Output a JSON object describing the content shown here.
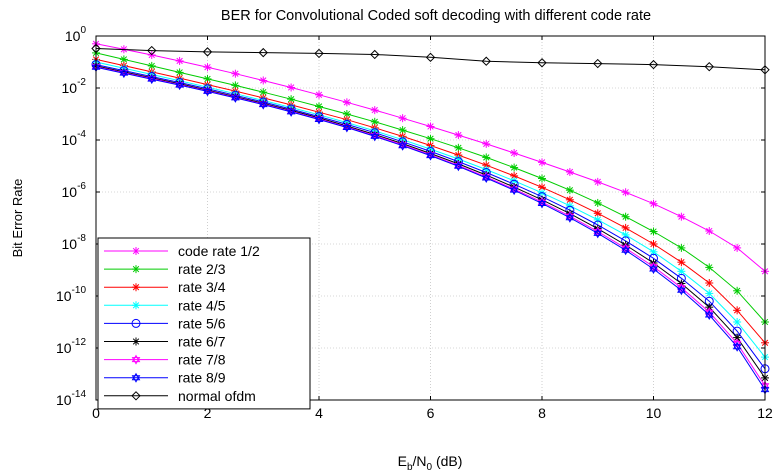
{
  "chart_data": {
    "type": "line",
    "title": "BER for Convolutional Coded soft decoding with different code rate",
    "xlabel_base": "E",
    "xlabel_sub1": "b",
    "xlabel_mid": "/N",
    "xlabel_sub2": "0",
    "xlabel_unit": " (dB)",
    "ylabel": "Bit Error Rate",
    "y_scale": "log",
    "xlim": [
      0,
      12
    ],
    "ylim": [
      1e-14,
      1
    ],
    "x_ticks": [
      "0",
      "2",
      "4",
      "6",
      "8",
      "10",
      "12"
    ],
    "y_ticks": [
      {
        "base": "10",
        "exp": "0"
      },
      {
        "base": "10",
        "exp": "-2"
      },
      {
        "base": "10",
        "exp": "-4"
      },
      {
        "base": "10",
        "exp": "-6"
      },
      {
        "base": "10",
        "exp": "-8"
      },
      {
        "base": "10",
        "exp": "-10"
      },
      {
        "base": "10",
        "exp": "-12"
      },
      {
        "base": "10",
        "exp": "-14"
      }
    ],
    "grid": true,
    "legend_position": "lower-left",
    "x": [
      0,
      0.5,
      1,
      1.5,
      2,
      2.5,
      3,
      3.5,
      4,
      4.5,
      5,
      5.5,
      6,
      6.5,
      7,
      7.5,
      8,
      8.5,
      9,
      9.5,
      10,
      10.5,
      11,
      11.5,
      12
    ],
    "series": [
      {
        "name": "code rate 1/2",
        "color": "#ff00ff",
        "marker": "asterisk",
        "log10_values": [
          -0.3,
          -0.51,
          -0.73,
          -0.96,
          -1.2,
          -1.45,
          -1.71,
          -1.98,
          -2.26,
          -2.55,
          -2.85,
          -3.16,
          -3.48,
          -3.81,
          -4.15,
          -4.5,
          -4.86,
          -5.23,
          -5.61,
          -6.01,
          -6.45,
          -6.95,
          -7.5,
          -8.15,
          -9.05
        ]
      },
      {
        "name": "rate 2/3",
        "color": "#00cc00",
        "marker": "asterisk",
        "log10_values": [
          -0.65,
          -0.9,
          -1.15,
          -1.4,
          -1.65,
          -1.9,
          -2.16,
          -2.43,
          -2.71,
          -3.0,
          -3.3,
          -3.62,
          -3.95,
          -4.3,
          -4.67,
          -5.06,
          -5.48,
          -5.93,
          -6.42,
          -6.95,
          -7.52,
          -8.15,
          -8.9,
          -9.8,
          -11.0
        ]
      },
      {
        "name": "rate 3/4",
        "color": "#ff0000",
        "marker": "asterisk",
        "log10_values": [
          -0.9,
          -1.14,
          -1.38,
          -1.62,
          -1.87,
          -2.12,
          -2.38,
          -2.65,
          -2.93,
          -3.22,
          -3.53,
          -3.86,
          -4.21,
          -4.58,
          -4.97,
          -5.38,
          -5.82,
          -6.3,
          -6.82,
          -7.38,
          -8.0,
          -8.7,
          -9.5,
          -10.55,
          -11.8
        ]
      },
      {
        "name": "rate 4/5",
        "color": "#00ffff",
        "marker": "asterisk",
        "log10_values": [
          -1.0,
          -1.24,
          -1.48,
          -1.72,
          -1.97,
          -2.22,
          -2.48,
          -2.75,
          -3.03,
          -3.33,
          -3.65,
          -3.99,
          -4.35,
          -4.73,
          -5.14,
          -5.57,
          -6.03,
          -6.53,
          -7.07,
          -7.65,
          -8.3,
          -9.05,
          -9.9,
          -11.0,
          -12.35
        ]
      },
      {
        "name": "rate 5/6",
        "color": "#0000ff",
        "marker": "circle",
        "log10_values": [
          -1.1,
          -1.33,
          -1.56,
          -1.79,
          -2.03,
          -2.28,
          -2.54,
          -2.81,
          -3.1,
          -3.4,
          -3.72,
          -4.07,
          -4.44,
          -4.83,
          -5.25,
          -5.7,
          -6.18,
          -6.7,
          -7.27,
          -7.88,
          -8.55,
          -9.32,
          -10.2,
          -11.35,
          -12.8
        ]
      },
      {
        "name": "rate 6/7",
        "color": "#000000",
        "marker": "asterisk",
        "log10_values": [
          -1.15,
          -1.38,
          -1.61,
          -1.84,
          -2.08,
          -2.33,
          -2.59,
          -2.86,
          -3.15,
          -3.46,
          -3.79,
          -4.14,
          -4.52,
          -4.92,
          -5.35,
          -5.81,
          -6.3,
          -6.83,
          -7.41,
          -8.04,
          -8.73,
          -9.52,
          -10.43,
          -11.6,
          -13.15
        ]
      },
      {
        "name": "rate 7/8",
        "color": "#ff00ff",
        "marker": "hexagram",
        "log10_values": [
          -1.18,
          -1.41,
          -1.64,
          -1.87,
          -2.11,
          -2.36,
          -2.62,
          -2.9,
          -3.19,
          -3.5,
          -3.83,
          -4.19,
          -4.57,
          -4.98,
          -5.42,
          -5.89,
          -6.39,
          -6.93,
          -7.52,
          -8.16,
          -8.87,
          -9.68,
          -10.62,
          -11.82,
          -13.45
        ]
      },
      {
        "name": "rate 8/9",
        "color": "#0000ff",
        "marker": "hexagram",
        "log10_values": [
          -1.2,
          -1.43,
          -1.66,
          -1.89,
          -2.13,
          -2.38,
          -2.64,
          -2.92,
          -3.21,
          -3.52,
          -3.86,
          -4.22,
          -4.6,
          -5.01,
          -5.46,
          -5.93,
          -6.44,
          -6.99,
          -7.59,
          -8.24,
          -8.96,
          -9.78,
          -10.73,
          -11.95,
          -13.6
        ]
      },
      {
        "name": "normal ofdm",
        "color": "#000000",
        "marker": "diamond",
        "x": [
          0,
          1,
          2,
          3,
          4,
          5,
          6,
          7,
          8,
          9,
          10,
          11,
          12
        ],
        "log10_values": [
          -0.48,
          -0.56,
          -0.61,
          -0.64,
          -0.67,
          -0.71,
          -0.82,
          -0.97,
          -1.03,
          -1.06,
          -1.1,
          -1.18,
          -1.3
        ]
      }
    ]
  }
}
